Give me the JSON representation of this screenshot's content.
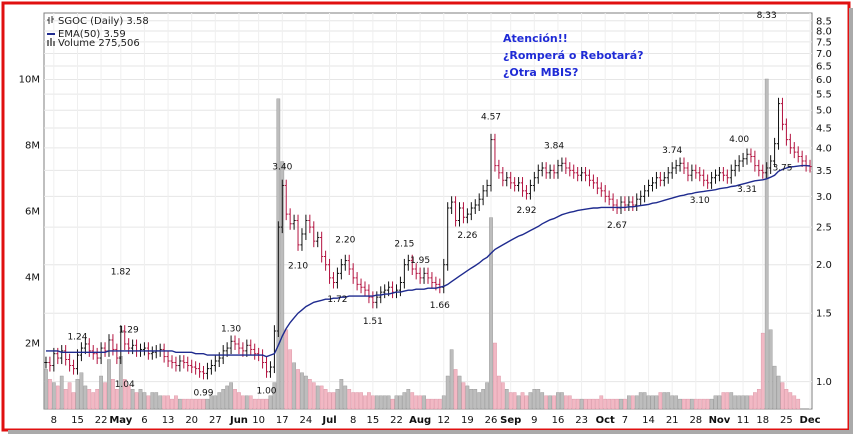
{
  "chart_data": {
    "type": "ohlc",
    "symbol_line": "SGOC (Daily) 3.58",
    "ema_label": "EMA(50) 3.59",
    "volume_label": "Volume 275,506",
    "note_lines": [
      "Atención!!",
      "¿Romperá o Rebotará?",
      "¿Otra MBIS?"
    ],
    "price_ticks": [
      "8.5",
      "8.0",
      "7.5",
      "7.0",
      "6.5",
      "6.0",
      "5.5",
      "5.0",
      "4.5",
      "4.0",
      "3.5",
      "3.0",
      "2.5",
      "2.0",
      "1.5",
      "1.0"
    ],
    "volume_ticks": [
      "10M",
      "8M",
      "6M",
      "4M",
      "2M"
    ],
    "x_ticks": [
      "8",
      "15",
      "22",
      "May",
      "6",
      "13",
      "20",
      "27",
      "Jun",
      "10",
      "17",
      "24",
      "Jul",
      "8",
      "15",
      "22",
      "Aug",
      "12",
      "19",
      "26",
      "Sep",
      "9",
      "16",
      "23",
      "Oct",
      "7",
      "14",
      "21",
      "28",
      "Nov",
      "11",
      "18",
      "25",
      "Dec"
    ],
    "price_scale": "log",
    "price_range": [
      0.85,
      8.9
    ],
    "volume_range_millions": [
      0,
      12
    ],
    "annotations": [
      {
        "label": "1.24",
        "x": 8,
        "price": 1.24
      },
      {
        "label": "1.82",
        "x": 19,
        "price": 1.82
      },
      {
        "label": "1.04",
        "x": 20,
        "price": 1.04
      },
      {
        "label": "1.29",
        "x": 21,
        "price": 1.29
      },
      {
        "label": "0.99",
        "x": 40,
        "price": 0.99
      },
      {
        "label": "1.30",
        "x": 47,
        "price": 1.3
      },
      {
        "label": "1.00",
        "x": 56,
        "price": 1.0
      },
      {
        "label": "3.40",
        "x": 60,
        "price": 3.4
      },
      {
        "label": "2.10",
        "x": 64,
        "price": 2.1
      },
      {
        "label": "1.72",
        "x": 74,
        "price": 1.72
      },
      {
        "label": "2.20",
        "x": 76,
        "price": 2.2
      },
      {
        "label": "1.51",
        "x": 83,
        "price": 1.51
      },
      {
        "label": "2.15",
        "x": 91,
        "price": 2.15
      },
      {
        "label": "1.95",
        "x": 95,
        "price": 1.95
      },
      {
        "label": "1.66",
        "x": 100,
        "price": 1.66
      },
      {
        "label": "2.26",
        "x": 107,
        "price": 2.26
      },
      {
        "label": "4.57",
        "x": 113,
        "price": 4.57
      },
      {
        "label": "2.92",
        "x": 122,
        "price": 2.92
      },
      {
        "label": "3.84",
        "x": 129,
        "price": 3.84
      },
      {
        "label": "2.67",
        "x": 145,
        "price": 2.67
      },
      {
        "label": "3.74",
        "x": 159,
        "price": 3.74
      },
      {
        "label": "3.10",
        "x": 166,
        "price": 3.1
      },
      {
        "label": "4.00",
        "x": 176,
        "price": 4.0
      },
      {
        "label": "3.31",
        "x": 178,
        "price": 3.31
      },
      {
        "label": "8.33",
        "x": 183,
        "price": 8.33
      },
      {
        "label": "3.75",
        "x": 187,
        "price": 3.75
      }
    ],
    "close": [
      1.12,
      1.1,
      1.18,
      1.15,
      1.2,
      1.14,
      1.1,
      1.08,
      1.17,
      1.22,
      1.25,
      1.2,
      1.18,
      1.15,
      1.22,
      1.2,
      1.28,
      1.21,
      1.15,
      1.35,
      1.25,
      1.22,
      1.24,
      1.2,
      1.21,
      1.22,
      1.18,
      1.19,
      1.2,
      1.21,
      1.16,
      1.13,
      1.12,
      1.1,
      1.13,
      1.12,
      1.1,
      1.09,
      1.08,
      1.06,
      1.05,
      1.08,
      1.1,
      1.13,
      1.15,
      1.2,
      1.22,
      1.27,
      1.25,
      1.22,
      1.2,
      1.24,
      1.21,
      1.18,
      1.17,
      1.12,
      1.06,
      1.09,
      1.35,
      2.5,
      3.2,
      2.7,
      2.55,
      2.6,
      2.25,
      2.4,
      2.6,
      2.5,
      2.3,
      2.35,
      2.1,
      2.0,
      1.85,
      1.8,
      1.9,
      2.0,
      2.05,
      1.95,
      1.85,
      1.78,
      1.75,
      1.72,
      1.65,
      1.6,
      1.65,
      1.7,
      1.72,
      1.75,
      1.7,
      1.72,
      1.8,
      2.0,
      2.05,
      1.95,
      1.9,
      1.85,
      1.9,
      1.85,
      1.8,
      1.78,
      1.75,
      2.0,
      2.8,
      2.9,
      2.6,
      2.8,
      2.65,
      2.7,
      2.8,
      2.85,
      2.95,
      3.1,
      3.2,
      4.2,
      3.6,
      3.45,
      3.3,
      3.35,
      3.25,
      3.2,
      3.25,
      3.1,
      3.05,
      3.2,
      3.35,
      3.5,
      3.55,
      3.45,
      3.5,
      3.45,
      3.6,
      3.65,
      3.55,
      3.5,
      3.45,
      3.4,
      3.45,
      3.4,
      3.3,
      3.25,
      3.15,
      3.1,
      3.0,
      2.95,
      2.85,
      2.8,
      2.9,
      2.85,
      2.9,
      2.85,
      2.95,
      3.0,
      3.1,
      3.2,
      3.25,
      3.35,
      3.3,
      3.35,
      3.45,
      3.55,
      3.6,
      3.65,
      3.55,
      3.4,
      3.5,
      3.45,
      3.4,
      3.3,
      3.25,
      3.35,
      3.4,
      3.45,
      3.4,
      3.35,
      3.5,
      3.6,
      3.7,
      3.75,
      3.85,
      3.8,
      3.6,
      3.5,
      3.45,
      3.55,
      3.7,
      4.1,
      5.2,
      4.6,
      4.2,
      4.0,
      3.9,
      3.8,
      3.7,
      3.6,
      3.58
    ],
    "ema50": [
      1.2,
      1.2,
      1.2,
      1.2,
      1.19,
      1.19,
      1.19,
      1.19,
      1.19,
      1.19,
      1.19,
      1.19,
      1.19,
      1.19,
      1.19,
      1.19,
      1.2,
      1.2,
      1.2,
      1.2,
      1.2,
      1.2,
      1.2,
      1.2,
      1.2,
      1.2,
      1.2,
      1.2,
      1.2,
      1.2,
      1.2,
      1.2,
      1.2,
      1.19,
      1.19,
      1.19,
      1.19,
      1.19,
      1.18,
      1.18,
      1.18,
      1.17,
      1.17,
      1.17,
      1.17,
      1.17,
      1.17,
      1.17,
      1.17,
      1.17,
      1.17,
      1.17,
      1.17,
      1.17,
      1.17,
      1.17,
      1.16,
      1.17,
      1.18,
      1.24,
      1.31,
      1.37,
      1.42,
      1.46,
      1.5,
      1.53,
      1.56,
      1.58,
      1.6,
      1.61,
      1.62,
      1.63,
      1.63,
      1.64,
      1.64,
      1.65,
      1.65,
      1.66,
      1.66,
      1.66,
      1.66,
      1.66,
      1.66,
      1.66,
      1.67,
      1.67,
      1.68,
      1.68,
      1.69,
      1.7,
      1.7,
      1.71,
      1.72,
      1.72,
      1.73,
      1.73,
      1.73,
      1.74,
      1.74,
      1.74,
      1.75,
      1.76,
      1.78,
      1.81,
      1.84,
      1.87,
      1.9,
      1.93,
      1.96,
      1.99,
      2.02,
      2.06,
      2.09,
      2.14,
      2.19,
      2.22,
      2.25,
      2.28,
      2.31,
      2.34,
      2.37,
      2.39,
      2.42,
      2.45,
      2.48,
      2.51,
      2.55,
      2.58,
      2.61,
      2.63,
      2.66,
      2.69,
      2.71,
      2.73,
      2.74,
      2.76,
      2.77,
      2.78,
      2.79,
      2.8,
      2.8,
      2.81,
      2.81,
      2.81,
      2.81,
      2.81,
      2.81,
      2.81,
      2.82,
      2.82,
      2.83,
      2.84,
      2.85,
      2.86,
      2.88,
      2.89,
      2.91,
      2.93,
      2.95,
      2.97,
      2.99,
      3.01,
      3.02,
      3.04,
      3.05,
      3.07,
      3.08,
      3.09,
      3.1,
      3.11,
      3.12,
      3.14,
      3.15,
      3.16,
      3.18,
      3.19,
      3.21,
      3.23,
      3.25,
      3.27,
      3.29,
      3.3,
      3.31,
      3.33,
      3.36,
      3.4,
      3.48,
      3.52,
      3.55,
      3.57,
      3.58,
      3.59,
      3.6,
      3.6,
      3.59
    ],
    "volume_millions": [
      1.2,
      0.9,
      0.8,
      0.7,
      1.0,
      0.6,
      0.8,
      0.5,
      0.9,
      1.1,
      0.7,
      0.6,
      0.5,
      0.6,
      1.0,
      0.8,
      1.5,
      0.9,
      0.6,
      1.6,
      0.9,
      0.7,
      0.6,
      0.5,
      0.6,
      0.5,
      0.4,
      0.5,
      0.5,
      0.4,
      0.4,
      0.4,
      0.3,
      0.4,
      0.3,
      0.3,
      0.3,
      0.3,
      0.3,
      0.3,
      0.3,
      0.3,
      0.4,
      0.4,
      0.5,
      0.6,
      0.7,
      0.8,
      0.6,
      0.5,
      0.4,
      0.4,
      0.4,
      0.3,
      0.3,
      0.3,
      0.3,
      0.4,
      0.8,
      9.4,
      7.5,
      2.4,
      1.8,
      1.4,
      1.2,
      1.1,
      1.0,
      0.9,
      0.8,
      0.7,
      0.7,
      0.6,
      0.5,
      0.5,
      0.6,
      0.9,
      0.7,
      0.6,
      0.5,
      0.5,
      0.5,
      0.4,
      0.5,
      0.4,
      0.4,
      0.4,
      0.4,
      0.4,
      0.3,
      0.4,
      0.4,
      0.5,
      0.6,
      0.5,
      0.4,
      0.4,
      0.4,
      0.3,
      0.3,
      0.3,
      0.3,
      0.4,
      1.0,
      1.8,
      1.2,
      1.0,
      0.8,
      0.7,
      0.6,
      0.6,
      0.5,
      0.6,
      0.8,
      5.8,
      2.0,
      1.0,
      0.8,
      0.6,
      0.5,
      0.5,
      0.4,
      0.5,
      0.4,
      0.5,
      0.6,
      0.6,
      0.5,
      0.4,
      0.4,
      0.4,
      0.5,
      0.5,
      0.4,
      0.4,
      0.3,
      0.3,
      0.3,
      0.3,
      0.3,
      0.3,
      0.3,
      0.4,
      0.3,
      0.3,
      0.3,
      0.3,
      0.3,
      0.3,
      0.4,
      0.4,
      0.4,
      0.5,
      0.5,
      0.4,
      0.4,
      0.4,
      0.5,
      0.5,
      0.5,
      0.4,
      0.4,
      0.3,
      0.3,
      0.3,
      0.3,
      0.3,
      0.3,
      0.3,
      0.3,
      0.3,
      0.4,
      0.4,
      0.5,
      0.5,
      0.5,
      0.4,
      0.4,
      0.4,
      0.4,
      0.4,
      0.5,
      0.6,
      2.3,
      10.0,
      2.4,
      1.3,
      1.0,
      0.8,
      0.6,
      0.5,
      0.4,
      0.3
    ]
  }
}
